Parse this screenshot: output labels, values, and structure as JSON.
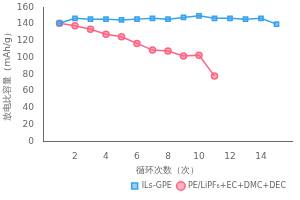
{
  "chart_data": {
    "type": "line",
    "xlabel": "循环次数（次）",
    "ylabel": "放电比容量（mAh/g）",
    "series": [
      {
        "name": "ILs-GPE",
        "marker": "square",
        "x": [
          1,
          2,
          3,
          4,
          5,
          6,
          7,
          8,
          9,
          10,
          11,
          12,
          13,
          14,
          15
        ],
        "values": [
          141,
          147,
          146,
          146,
          145,
          146,
          147,
          146,
          148,
          150,
          147,
          147,
          146,
          147,
          140
        ]
      },
      {
        "name": "PE/LiPF₆+EC+DMC+DEC",
        "marker": "circle",
        "x": [
          1,
          2,
          3,
          4,
          5,
          6,
          7,
          8,
          9,
          10,
          11
        ],
        "values": [
          141,
          138,
          134,
          128,
          125,
          117,
          109,
          108,
          102,
          103,
          78
        ]
      }
    ],
    "xlim": [
      0,
      16
    ],
    "ylim": [
      0,
      160
    ],
    "xticks": [
      2,
      4,
      6,
      8,
      10,
      12,
      14
    ],
    "yticks": [
      0,
      20,
      40,
      60,
      80,
      100,
      120,
      140,
      160
    ],
    "grid": false,
    "legend": "lower right"
  }
}
